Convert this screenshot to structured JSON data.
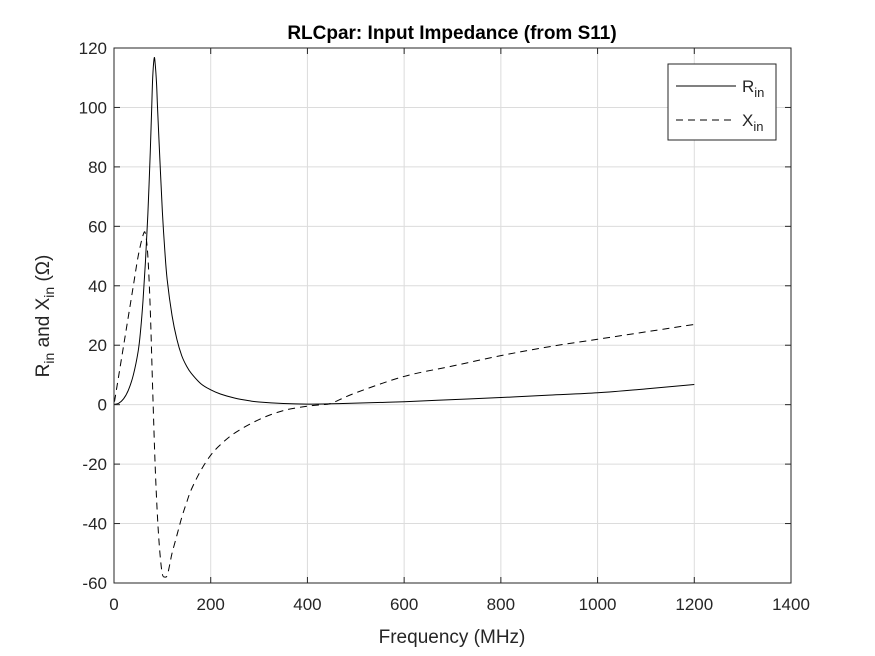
{
  "chart_data": {
    "type": "line",
    "title": "RLCpar: Input Impedance (from S11)",
    "xlabel": "Frequency (MHz)",
    "ylabel": {
      "base1": "R",
      "sub1": "in",
      "mid": " and X",
      "sub2": "in",
      "tail": " (Ω)"
    },
    "xlim": [
      0,
      1400
    ],
    "ylim": [
      -60,
      120
    ],
    "xticks": [
      0,
      200,
      400,
      600,
      800,
      1000,
      1200,
      1400
    ],
    "yticks": [
      -60,
      -40,
      -20,
      0,
      20,
      40,
      60,
      80,
      100,
      120
    ],
    "grid": true,
    "legend_position": "top-right",
    "series": [
      {
        "name": {
          "base": "R",
          "sub": "in"
        },
        "style": "solid",
        "color": "#000000",
        "x": [
          1,
          10,
          20,
          30,
          40,
          50,
          55,
          60,
          65,
          70,
          75,
          78,
          80,
          83,
          85,
          88,
          90,
          95,
          100,
          105,
          110,
          120,
          130,
          140,
          150,
          160,
          180,
          200,
          220,
          250,
          280,
          300,
          350,
          400,
          450,
          500,
          600,
          700,
          800,
          900,
          1000,
          1100,
          1200
        ],
        "y": [
          0.1,
          0.5,
          2,
          5,
          10,
          18,
          25,
          35,
          48,
          64,
          85,
          100,
          110,
          116.5,
          115,
          108,
          100,
          82,
          65,
          52,
          42,
          30,
          22,
          16.5,
          13,
          10.5,
          7,
          5,
          3.6,
          2.2,
          1.3,
          0.9,
          0.4,
          0.2,
          0.3,
          0.5,
          1,
          1.7,
          2.4,
          3.2,
          4,
          5.3,
          6.8
        ]
      },
      {
        "name": {
          "base": "X",
          "sub": "in"
        },
        "style": "dashed",
        "color": "#000000",
        "x": [
          1,
          10,
          20,
          30,
          40,
          50,
          60,
          65,
          70,
          75,
          80,
          85,
          90,
          95,
          100,
          105,
          110,
          115,
          120,
          130,
          140,
          150,
          160,
          180,
          200,
          220,
          250,
          300,
          350,
          400,
          430,
          450,
          500,
          600,
          700,
          800,
          900,
          1000,
          1100,
          1200
        ],
        "y": [
          1,
          10,
          20,
          30,
          40,
          50,
          57,
          57.5,
          50,
          32,
          5,
          -20,
          -38,
          -50,
          -57,
          -58,
          -57.5,
          -54,
          -50,
          -44,
          -38,
          -33,
          -28.5,
          -22,
          -17,
          -13.5,
          -9.5,
          -5,
          -2,
          -0.5,
          0,
          0.5,
          4,
          9.5,
          13,
          16.5,
          19.5,
          22,
          24.5,
          27
        ]
      }
    ]
  }
}
